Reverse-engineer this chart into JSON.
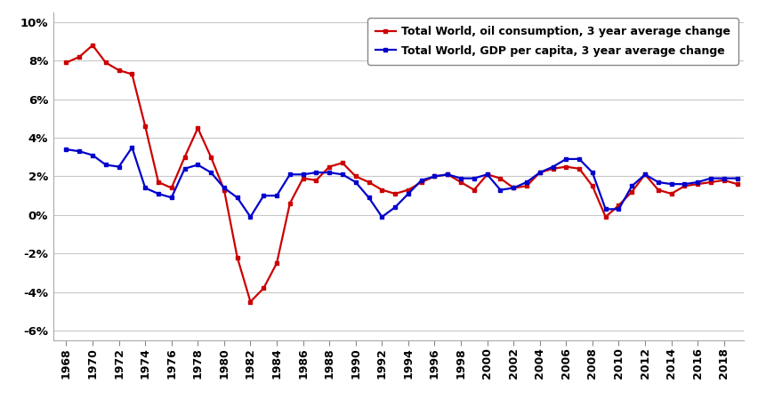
{
  "years": [
    1968,
    1969,
    1970,
    1971,
    1972,
    1973,
    1974,
    1975,
    1976,
    1977,
    1978,
    1979,
    1980,
    1981,
    1982,
    1983,
    1984,
    1985,
    1986,
    1987,
    1988,
    1989,
    1990,
    1991,
    1992,
    1993,
    1994,
    1995,
    1996,
    1997,
    1998,
    1999,
    2000,
    2001,
    2002,
    2003,
    2004,
    2005,
    2006,
    2007,
    2008,
    2009,
    2010,
    2011,
    2012,
    2013,
    2014,
    2015,
    2016,
    2017,
    2018,
    2019
  ],
  "oil": [
    0.079,
    0.082,
    0.088,
    0.079,
    0.075,
    0.073,
    0.046,
    0.017,
    0.014,
    0.03,
    0.045,
    0.03,
    0.013,
    -0.022,
    -0.045,
    -0.038,
    -0.025,
    0.006,
    0.019,
    0.018,
    0.025,
    0.027,
    0.02,
    0.017,
    0.013,
    0.011,
    0.013,
    0.017,
    0.02,
    0.021,
    0.017,
    0.013,
    0.021,
    0.019,
    0.014,
    0.015,
    0.022,
    0.024,
    0.025,
    0.024,
    0.015,
    -0.001,
    0.005,
    0.012,
    0.021,
    0.013,
    0.011,
    0.015,
    0.016,
    0.017,
    0.018,
    0.016
  ],
  "gdp": [
    0.034,
    0.033,
    0.031,
    0.026,
    0.025,
    0.035,
    0.014,
    0.011,
    0.009,
    0.024,
    0.026,
    0.022,
    0.014,
    0.009,
    -0.001,
    0.01,
    0.01,
    0.021,
    0.021,
    0.022,
    0.022,
    0.021,
    0.017,
    0.009,
    -0.001,
    0.004,
    0.011,
    0.018,
    0.02,
    0.021,
    0.019,
    0.019,
    0.021,
    0.013,
    0.014,
    0.017,
    0.022,
    0.025,
    0.029,
    0.029,
    0.022,
    0.003,
    0.003,
    0.015,
    0.021,
    0.017,
    0.016,
    0.016,
    0.017,
    0.019,
    0.019,
    0.019
  ],
  "oil_color": "#cc0000",
  "gdp_color": "#0000cc",
  "legend_oil": "Total World, oil consumption, 3 year average change",
  "legend_gdp": "Total World, GDP per capita, 3 year average change",
  "ylim": [
    -0.065,
    0.105
  ],
  "yticks": [
    -0.06,
    -0.04,
    -0.02,
    0.0,
    0.02,
    0.04,
    0.06,
    0.08,
    0.1
  ],
  "ytick_labels": [
    "-6%",
    "-4%",
    "-2%",
    "0%",
    "2%",
    "4%",
    "6%",
    "8%",
    "10%"
  ],
  "xticks": [
    1968,
    1970,
    1972,
    1974,
    1976,
    1978,
    1980,
    1982,
    1984,
    1986,
    1988,
    1990,
    1992,
    1994,
    1996,
    1998,
    2000,
    2002,
    2004,
    2006,
    2008,
    2010,
    2012,
    2014,
    2016,
    2018
  ],
  "bg_color": "#ffffff",
  "grid_color": "#c8c8c8",
  "xlim_left": 1967.0,
  "xlim_right": 2019.5
}
